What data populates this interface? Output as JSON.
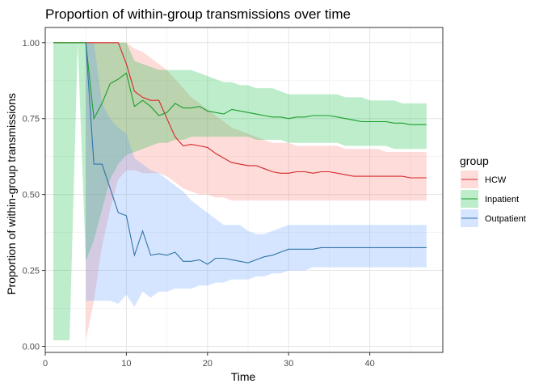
{
  "chart_data": {
    "type": "line",
    "title": "Proportion of within-group transmissions over time",
    "xlabel": "Time",
    "ylabel": "Proportion of within-group transmissions",
    "xlim": [
      0,
      49
    ],
    "ylim": [
      -0.02,
      1.05
    ],
    "x_ticks": [
      0,
      10,
      20,
      30,
      40
    ],
    "x_tick_labels": [
      "0",
      "10",
      "20",
      "30",
      "40"
    ],
    "y_ticks": [
      0,
      0.25,
      0.5,
      0.75,
      1.0
    ],
    "y_tick_labels": [
      "0.00",
      "0.25",
      "0.50",
      "0.75",
      "1.00"
    ],
    "grid": true,
    "legend": {
      "title": "group",
      "position": "right"
    },
    "series": [
      {
        "name": "HCW",
        "color": "#d62728",
        "fill": "#f8766d",
        "x": [
          1,
          2,
          3,
          4,
          5,
          6,
          7,
          8,
          9,
          10,
          11,
          12,
          13,
          14,
          15,
          16,
          17,
          18,
          19,
          20,
          21,
          22,
          23,
          24,
          25,
          26,
          27,
          28,
          29,
          30,
          31,
          32,
          33,
          34,
          35,
          36,
          37,
          38,
          39,
          40,
          41,
          42,
          43,
          44,
          45,
          46,
          47
        ],
        "values": [
          1.0,
          1.0,
          1.0,
          1.0,
          1.0,
          1.0,
          1.0,
          1.0,
          1.0,
          0.93,
          0.84,
          0.82,
          0.81,
          0.81,
          0.75,
          0.69,
          0.66,
          0.665,
          0.66,
          0.655,
          0.635,
          0.62,
          0.605,
          0.6,
          0.595,
          0.595,
          0.585,
          0.575,
          0.57,
          0.57,
          0.575,
          0.575,
          0.57,
          0.575,
          0.575,
          0.57,
          0.565,
          0.56,
          0.56,
          0.56,
          0.56,
          0.56,
          0.56,
          0.56,
          0.555,
          0.555,
          0.555
        ],
        "lower": [
          null,
          null,
          null,
          null,
          0.02,
          0.15,
          0.33,
          0.45,
          0.55,
          0.58,
          0.58,
          0.57,
          0.57,
          0.57,
          0.56,
          0.54,
          0.52,
          0.51,
          0.5,
          0.5,
          0.49,
          0.49,
          0.48,
          0.48,
          0.48,
          0.48,
          0.48,
          0.48,
          0.48,
          0.48,
          0.48,
          0.48,
          0.48,
          0.48,
          0.48,
          0.48,
          0.48,
          0.48,
          0.48,
          0.48,
          0.48,
          0.48,
          0.48,
          0.48,
          0.48,
          0.48,
          0.48
        ],
        "upper": [
          null,
          null,
          null,
          null,
          1.0,
          1.0,
          1.0,
          1.0,
          1.0,
          1.0,
          0.98,
          0.97,
          0.95,
          0.93,
          0.91,
          0.88,
          0.85,
          0.82,
          0.8,
          0.78,
          0.76,
          0.74,
          0.72,
          0.71,
          0.7,
          0.69,
          0.68,
          0.67,
          0.67,
          0.67,
          0.66,
          0.66,
          0.66,
          0.66,
          0.66,
          0.66,
          0.65,
          0.65,
          0.65,
          0.65,
          0.65,
          0.64,
          0.64,
          0.64,
          0.64,
          0.64,
          0.64
        ]
      },
      {
        "name": "Inpatient",
        "color": "#1a9e2a",
        "fill": "#00ba38",
        "x": [
          1,
          2,
          3,
          4,
          5,
          6,
          7,
          8,
          9,
          10,
          11,
          12,
          13,
          14,
          15,
          16,
          17,
          18,
          19,
          20,
          21,
          22,
          23,
          24,
          25,
          26,
          27,
          28,
          29,
          30,
          31,
          32,
          33,
          34,
          35,
          36,
          37,
          38,
          39,
          40,
          41,
          42,
          43,
          44,
          45,
          46,
          47
        ],
        "values": [
          1.0,
          1.0,
          1.0,
          1.0,
          1.0,
          0.75,
          0.8,
          0.865,
          0.88,
          0.9,
          0.79,
          0.81,
          0.79,
          0.76,
          0.77,
          0.8,
          0.785,
          0.785,
          0.79,
          0.775,
          0.77,
          0.765,
          0.78,
          0.775,
          0.77,
          0.765,
          0.76,
          0.755,
          0.755,
          0.75,
          0.755,
          0.755,
          0.76,
          0.76,
          0.76,
          0.755,
          0.75,
          0.745,
          0.74,
          0.74,
          0.74,
          0.74,
          0.735,
          0.735,
          0.73,
          0.73,
          0.73
        ],
        "lower": [
          0.02,
          0.02,
          0.02,
          1.0,
          0.28,
          0.35,
          0.45,
          0.55,
          0.6,
          0.63,
          0.64,
          0.65,
          0.66,
          0.67,
          0.67,
          0.68,
          0.68,
          0.69,
          0.69,
          0.69,
          0.69,
          0.69,
          0.69,
          0.69,
          0.69,
          0.68,
          0.68,
          0.68,
          0.68,
          0.67,
          0.67,
          0.67,
          0.67,
          0.67,
          0.67,
          0.67,
          0.66,
          0.66,
          0.66,
          0.66,
          0.66,
          0.66,
          0.65,
          0.65,
          0.65,
          0.65,
          0.65
        ],
        "upper": [
          1.0,
          1.0,
          1.0,
          1.0,
          1.0,
          1.0,
          1.0,
          1.0,
          1.0,
          1.0,
          0.94,
          0.93,
          0.92,
          0.91,
          0.91,
          0.91,
          0.91,
          0.91,
          0.9,
          0.89,
          0.88,
          0.87,
          0.87,
          0.86,
          0.86,
          0.85,
          0.85,
          0.85,
          0.84,
          0.83,
          0.83,
          0.83,
          0.83,
          0.83,
          0.83,
          0.83,
          0.82,
          0.82,
          0.82,
          0.81,
          0.81,
          0.81,
          0.81,
          0.8,
          0.8,
          0.8,
          0.8
        ]
      },
      {
        "name": "Outpatient",
        "color": "#2f73a8",
        "fill": "#619cff",
        "x": [
          5,
          6,
          7,
          8,
          9,
          10,
          11,
          12,
          13,
          14,
          15,
          16,
          17,
          18,
          19,
          20,
          21,
          22,
          23,
          24,
          25,
          26,
          27,
          28,
          29,
          30,
          31,
          32,
          33,
          34,
          35,
          36,
          37,
          38,
          39,
          40,
          41,
          42,
          43,
          44,
          45,
          46,
          47
        ],
        "values": [
          1.0,
          0.6,
          0.6,
          0.52,
          0.44,
          0.43,
          0.3,
          0.38,
          0.3,
          0.305,
          0.3,
          0.31,
          0.28,
          0.28,
          0.285,
          0.27,
          0.29,
          0.29,
          0.285,
          0.28,
          0.275,
          0.285,
          0.295,
          0.3,
          0.31,
          0.32,
          0.32,
          0.32,
          0.32,
          0.325,
          0.325,
          0.325,
          0.325,
          0.325,
          0.325,
          0.325,
          0.325,
          0.325,
          0.325,
          0.325,
          0.325,
          0.325,
          0.325
        ],
        "lower": [
          0.15,
          0.15,
          0.15,
          0.15,
          0.14,
          0.17,
          0.13,
          0.18,
          0.16,
          0.18,
          0.18,
          0.19,
          0.19,
          0.19,
          0.2,
          0.2,
          0.21,
          0.21,
          0.22,
          0.22,
          0.22,
          0.23,
          0.23,
          0.24,
          0.24,
          0.25,
          0.25,
          0.25,
          0.26,
          0.26,
          0.26,
          0.26,
          0.26,
          0.26,
          0.26,
          0.26,
          0.26,
          0.26,
          0.26,
          0.26,
          0.26,
          0.26,
          0.26
        ],
        "upper": [
          1.0,
          1.0,
          0.8,
          0.75,
          0.72,
          0.7,
          0.62,
          0.6,
          0.58,
          0.57,
          0.55,
          0.53,
          0.51,
          0.48,
          0.46,
          0.44,
          0.42,
          0.4,
          0.4,
          0.4,
          0.38,
          0.37,
          0.37,
          0.38,
          0.39,
          0.4,
          0.4,
          0.4,
          0.4,
          0.4,
          0.4,
          0.4,
          0.4,
          0.4,
          0.4,
          0.4,
          0.4,
          0.4,
          0.4,
          0.4,
          0.4,
          0.4,
          0.4
        ]
      }
    ]
  }
}
